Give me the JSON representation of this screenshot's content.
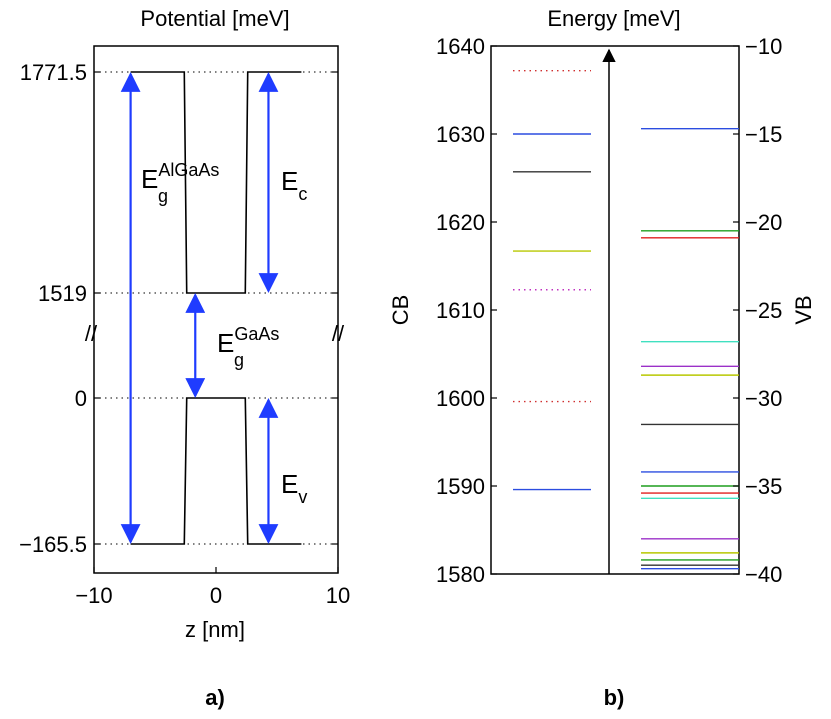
{
  "chart_data": [
    {
      "type": "line",
      "panel_label": "a)",
      "title": "Potential [meV]",
      "xlabel": "z [nm]",
      "ylabel": "",
      "xlim": [
        -10,
        10
      ],
      "x_ticks": [
        -10,
        0,
        10
      ],
      "x_tick_labels": [
        "−10",
        "0",
        "10"
      ],
      "y_tick_values": [
        1771.5,
        1519,
        0,
        -165.5
      ],
      "y_tick_labels": [
        "1771.5",
        "1519",
        "0",
        "−165.5"
      ],
      "axis_break_marker": "//",
      "grid": "dotted horizontal lines at y ticks",
      "series": [
        {
          "color": "#000000",
          "values_cb": {
            "x": [
              -7,
              -2.6,
              -2.4,
              2.4,
              2.6,
              7
            ],
            "y": [
              1771.5,
              1771.5,
              1519,
              1519,
              1771.5,
              1771.5
            ]
          },
          "values_vb": {
            "x": [
              -7,
              -2.6,
              -2.4,
              2.4,
              2.6,
              7
            ],
            "y": [
              -165.5,
              -165.5,
              0,
              0,
              -165.5,
              -165.5
            ]
          }
        }
      ],
      "annotations": [
        {
          "id": "eg_algaas",
          "base": "E",
          "sub": "g",
          "sup": "AlGaAs",
          "arrow_x": -7,
          "from": 1771.5,
          "to": -165.5,
          "color": "#1f3cff"
        },
        {
          "id": "ec",
          "base": "E",
          "sub": "c",
          "sup": "",
          "arrow_x": 4.3,
          "from": 1771.5,
          "to": 1519,
          "color": "#1f3cff"
        },
        {
          "id": "eg_gaas",
          "base": "E",
          "sub": "g",
          "sup": "GaAs",
          "arrow_x": -1.7,
          "from": 1519,
          "to": 0,
          "color": "#1f3cff"
        },
        {
          "id": "ev",
          "base": "E",
          "sub": "v",
          "sup": "",
          "arrow_x": 4.3,
          "from": 0,
          "to": -165.5,
          "color": "#1f3cff"
        }
      ]
    },
    {
      "type": "line",
      "panel_label": "b)",
      "title": "Energy [meV]",
      "ylabel_left": "CB",
      "ylabel_right": "VB",
      "ylim_left": [
        1580,
        1640
      ],
      "ylim_right": [
        -40,
        -10
      ],
      "yticks_left": [
        1580,
        1590,
        1600,
        1610,
        1620,
        1630,
        1640
      ],
      "yticks_right": [
        -40,
        -35,
        -30,
        -25,
        -20,
        -15,
        -10
      ],
      "ytick_labels_right": [
        "−40",
        "−35",
        "−30",
        "−25",
        "−20",
        "−15",
        "−10"
      ],
      "center_arrow": "upward vertical arrow",
      "cb_levels": [
        {
          "y": 1637.2,
          "color": "#d03030",
          "style": "dotted"
        },
        {
          "y": 1630.0,
          "color": "#2b4de0",
          "style": "solid"
        },
        {
          "y": 1625.7,
          "color": "#333333",
          "style": "solid"
        },
        {
          "y": 1616.7,
          "color": "#b8c800",
          "style": "solid"
        },
        {
          "y": 1612.3,
          "color": "#c030c0",
          "style": "dotted"
        },
        {
          "y": 1599.6,
          "color": "#d03030",
          "style": "dotted"
        },
        {
          "y": 1589.6,
          "color": "#2b4de0",
          "style": "solid"
        }
      ],
      "vb_levels": [
        {
          "y": -14.7,
          "color": "#2b4de0"
        },
        {
          "y": -20.5,
          "color": "#1f9e1f"
        },
        {
          "y": -20.9,
          "color": "#e01e1e"
        },
        {
          "y": -26.8,
          "color": "#40e0c0"
        },
        {
          "y": -28.2,
          "color": "#9b30c8"
        },
        {
          "y": -28.7,
          "color": "#b8c800"
        },
        {
          "y": -31.5,
          "color": "#333333"
        },
        {
          "y": -34.2,
          "color": "#2b4de0"
        },
        {
          "y": -35.0,
          "color": "#1f9e1f"
        },
        {
          "y": -35.4,
          "color": "#e01e1e"
        },
        {
          "y": -35.7,
          "color": "#40e0c0"
        },
        {
          "y": -38.0,
          "color": "#9b30c8"
        },
        {
          "y": -38.8,
          "color": "#b8c800"
        },
        {
          "y": -39.2,
          "color": "#1f9e1f"
        },
        {
          "y": -39.5,
          "color": "#333333"
        },
        {
          "y": -39.7,
          "color": "#2b4de0"
        }
      ]
    }
  ]
}
